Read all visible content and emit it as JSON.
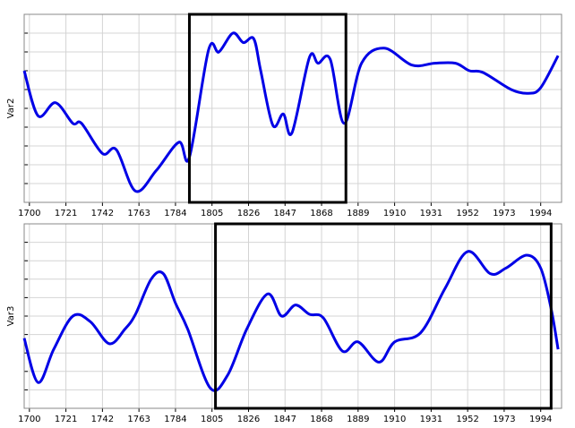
{
  "chart_data": [
    {
      "type": "line",
      "ylabel": "Var2",
      "x": [
        1697,
        1705,
        1715,
        1725,
        1730,
        1742,
        1750,
        1761,
        1773,
        1786,
        1792,
        1803,
        1809,
        1817,
        1823,
        1829,
        1833,
        1840,
        1846,
        1851,
        1861,
        1866,
        1873,
        1881,
        1891,
        1904,
        1920,
        1933,
        1945,
        1953,
        1961,
        1977,
        1987,
        1994,
        2004
      ],
      "series": [
        {
          "color": "#0000e6",
          "values": [
            70,
            46,
            53,
            42,
            42,
            26,
            28,
            6,
            17,
            32,
            24,
            81,
            80,
            90,
            85,
            87,
            70,
            41,
            47,
            37,
            77,
            74,
            76,
            42,
            74,
            82,
            73,
            74,
            74,
            70,
            69,
            60,
            58,
            61,
            78
          ]
        }
      ],
      "xlim": [
        1697,
        2006
      ],
      "xticks": [
        1700,
        1721,
        1742,
        1763,
        1784,
        1805,
        1826,
        1847,
        1868,
        1889,
        1910,
        1931,
        1952,
        1973,
        1994
      ],
      "ylim": [
        0,
        100
      ],
      "yticks": [
        0,
        10,
        20,
        30,
        40,
        50,
        60,
        70,
        80,
        90,
        100
      ],
      "grid": true,
      "box_x": [
        1792,
        1882
      ],
      "box_color": "#000000"
    },
    {
      "type": "line",
      "ylabel": "Var3",
      "x": [
        1697,
        1705,
        1714,
        1725,
        1735,
        1746,
        1755,
        1761,
        1770,
        1777,
        1784,
        1791,
        1804,
        1814,
        1825,
        1837,
        1845,
        1853,
        1861,
        1869,
        1880,
        1889,
        1901,
        1910,
        1925,
        1939,
        1952,
        1965,
        1974,
        1986,
        1994,
        2000,
        2004
      ],
      "series": [
        {
          "color": "#0000e6",
          "values": [
            38,
            14,
            32,
            50,
            47,
            35,
            43,
            51,
            70,
            73,
            57,
            43,
            11,
            18,
            43,
            62,
            50,
            56,
            51,
            49,
            31,
            36,
            25,
            36,
            41,
            65,
            85,
            73,
            76,
            83,
            76,
            54,
            32
          ]
        }
      ],
      "xlim": [
        1697,
        2006
      ],
      "xticks": [
        1700,
        1721,
        1742,
        1763,
        1784,
        1805,
        1826,
        1847,
        1868,
        1889,
        1910,
        1931,
        1952,
        1973,
        1994
      ],
      "ylim": [
        0,
        100
      ],
      "yticks": [
        0,
        10,
        20,
        30,
        40,
        50,
        60,
        70,
        80,
        90,
        100
      ],
      "grid": true,
      "box_x": [
        1807,
        2000
      ],
      "box_color": "#000000"
    }
  ]
}
